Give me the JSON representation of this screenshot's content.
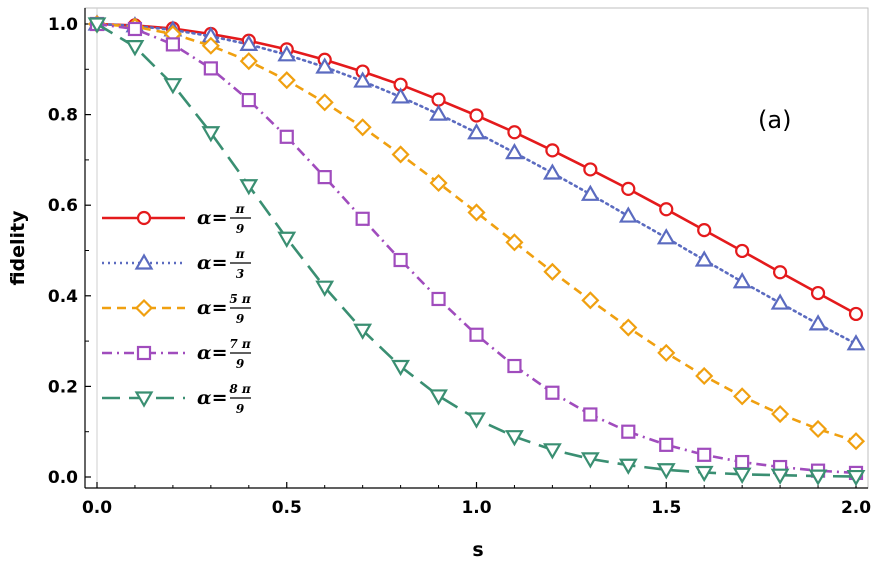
{
  "chart_data": {
    "type": "line",
    "title": "",
    "xlabel": "s",
    "ylabel": "fidelity",
    "annotation": "(a)",
    "xlim": [
      0,
      2.0
    ],
    "ylim": [
      0,
      1.0
    ],
    "xticks": [
      "0.0",
      "0.5",
      "1.0",
      "1.5",
      "2.0"
    ],
    "yticks": [
      "0.0",
      "0.2",
      "0.4",
      "0.6",
      "0.8",
      "1.0"
    ],
    "x": [
      0,
      0.1,
      0.2,
      0.3,
      0.4,
      0.5,
      0.6,
      0.7,
      0.8,
      0.9,
      1.0,
      1.1,
      1.2,
      1.3,
      1.4,
      1.5,
      1.6,
      1.7,
      1.8,
      1.9,
      2.0
    ],
    "legend_position": "left",
    "series": [
      {
        "name": "α=π/9",
        "legend_prefix": "α=",
        "legend_num": "π",
        "legend_den": "9",
        "color": "#e41a1c",
        "dash": "solid",
        "marker": "circle",
        "values": [
          1.0,
          0.997,
          0.99,
          0.978,
          0.963,
          0.944,
          0.921,
          0.895,
          0.866,
          0.833,
          0.798,
          0.761,
          0.721,
          0.679,
          0.636,
          0.591,
          0.545,
          0.499,
          0.452,
          0.406,
          0.36
        ]
      },
      {
        "name": "α=π/3",
        "legend_prefix": "α=",
        "legend_num": "π",
        "legend_den": "3",
        "color": "#5b6bc0",
        "dash": "dotted",
        "marker": "triangle-up",
        "values": [
          1.0,
          0.996,
          0.987,
          0.973,
          0.955,
          0.932,
          0.905,
          0.874,
          0.839,
          0.801,
          0.76,
          0.716,
          0.671,
          0.624,
          0.576,
          0.528,
          0.479,
          0.431,
          0.384,
          0.338,
          0.294
        ]
      },
      {
        "name": "α=5π/9",
        "legend_prefix": "α=",
        "legend_num": "5 π",
        "legend_den": "9",
        "color": "#f0a010",
        "dash": "dashed",
        "marker": "diamond",
        "values": [
          1.0,
          0.994,
          0.978,
          0.952,
          0.918,
          0.876,
          0.827,
          0.772,
          0.712,
          0.649,
          0.584,
          0.518,
          0.453,
          0.39,
          0.33,
          0.274,
          0.223,
          0.178,
          0.139,
          0.106,
          0.079
        ]
      },
      {
        "name": "α=7π/9",
        "legend_prefix": "α=",
        "legend_num": "7 π",
        "legend_den": "9",
        "color": "#a04cbd",
        "dash": "dashdot",
        "marker": "square",
        "values": [
          1.0,
          0.989,
          0.955,
          0.902,
          0.832,
          0.751,
          0.662,
          0.57,
          0.479,
          0.393,
          0.314,
          0.245,
          0.186,
          0.138,
          0.1,
          0.071,
          0.049,
          0.033,
          0.022,
          0.014,
          0.009
        ]
      },
      {
        "name": "α=8π/9",
        "legend_prefix": "α=",
        "legend_num": "8 π",
        "legend_den": "9",
        "color": "#3a8f72",
        "dash": "longdash",
        "marker": "triangle-down",
        "values": [
          1.0,
          0.95,
          0.866,
          0.76,
          0.643,
          0.527,
          0.419,
          0.324,
          0.244,
          0.179,
          0.128,
          0.089,
          0.06,
          0.04,
          0.026,
          0.016,
          0.01,
          0.006,
          0.004,
          0.002,
          0.001
        ]
      }
    ]
  }
}
